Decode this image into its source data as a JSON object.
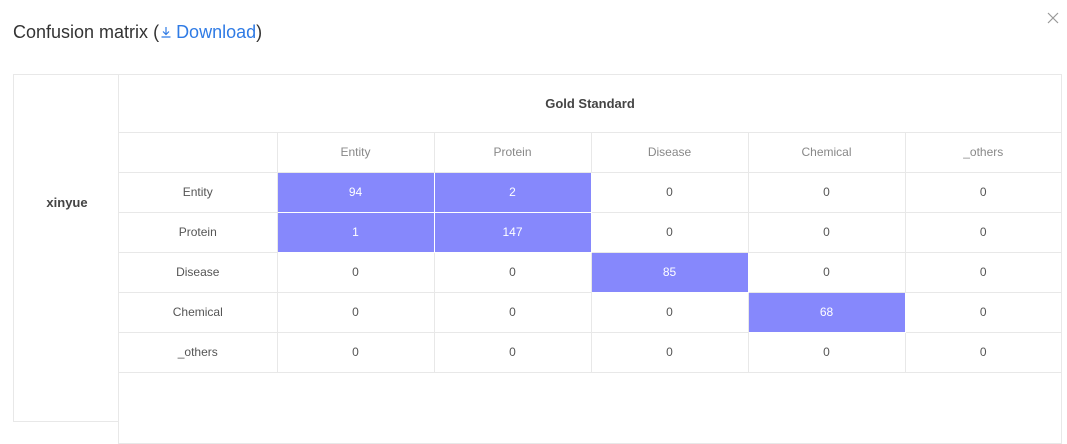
{
  "modal": {
    "title": "Confusion matrix",
    "paren_open": " (",
    "download_label": "Download",
    "paren_close": ")"
  },
  "annotator": "xinyue",
  "gold_header": "Gold Standard",
  "columns": [
    "Entity",
    "Protein",
    "Disease",
    "Chemical",
    "_others"
  ],
  "rows": [
    {
      "label": "Entity",
      "values": [
        "94",
        "2",
        "0",
        "0",
        "0"
      ],
      "highlight": [
        true,
        true,
        false,
        false,
        false
      ]
    },
    {
      "label": "Protein",
      "values": [
        "1",
        "147",
        "0",
        "0",
        "0"
      ],
      "highlight": [
        true,
        true,
        false,
        false,
        false
      ]
    },
    {
      "label": "Disease",
      "values": [
        "0",
        "0",
        "85",
        "0",
        "0"
      ],
      "highlight": [
        false,
        false,
        true,
        false,
        false
      ]
    },
    {
      "label": "Chemical",
      "values": [
        "0",
        "0",
        "0",
        "68",
        "0"
      ],
      "highlight": [
        false,
        false,
        false,
        true,
        false
      ]
    },
    {
      "label": "_others",
      "values": [
        "0",
        "0",
        "0",
        "0",
        "0"
      ],
      "highlight": [
        false,
        false,
        false,
        false,
        false
      ]
    }
  ],
  "colors": {
    "highlight": "#8688fc",
    "link": "#2f7be5"
  },
  "icons": {
    "download": "download-icon",
    "close": "close-icon"
  }
}
